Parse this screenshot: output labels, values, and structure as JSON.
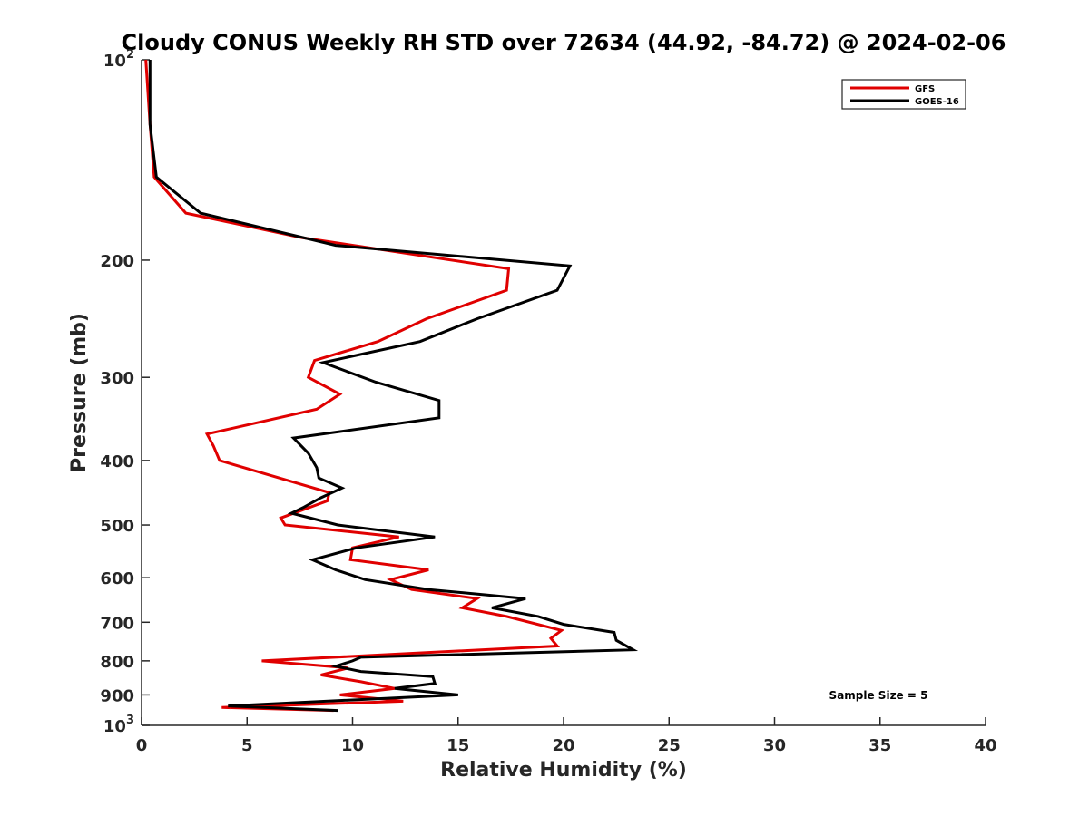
{
  "chart_data": {
    "type": "line",
    "title": "Cloudy CONUS Weekly RH STD over 72634 (44.92, -84.72) @ 2024-02-06",
    "xlabel": "Relative Humidity (%)",
    "ylabel": "Pressure (mb)",
    "xlim": [
      0,
      40
    ],
    "ylim": [
      1000,
      100
    ],
    "y_scale": "log",
    "y_reversed": true,
    "grid": false,
    "legend_position": "top-right",
    "x_ticks": [
      "0",
      "5",
      "10",
      "15",
      "20",
      "25",
      "30",
      "35",
      "40"
    ],
    "y_ticks": [
      {
        "value": 100,
        "base": "10",
        "exp": "2"
      },
      {
        "value": 200,
        "label": "200"
      },
      {
        "value": 300,
        "label": "300"
      },
      {
        "value": 400,
        "label": "400"
      },
      {
        "value": 500,
        "label": "500"
      },
      {
        "value": 600,
        "label": "600"
      },
      {
        "value": 700,
        "label": "700"
      },
      {
        "value": 800,
        "label": "800"
      },
      {
        "value": 900,
        "label": "900"
      },
      {
        "value": 1000,
        "base": "10",
        "exp": "3"
      }
    ],
    "series": [
      {
        "name": "GFS",
        "color": "#e00000",
        "points": [
          [
            0.2,
            100
          ],
          [
            0.4,
            125
          ],
          [
            0.6,
            150
          ],
          [
            2.1,
            170
          ],
          [
            7.6,
            185
          ],
          [
            17.4,
            206
          ],
          [
            17.3,
            222
          ],
          [
            13.5,
            245
          ],
          [
            11.2,
            265
          ],
          [
            8.2,
            283
          ],
          [
            7.9,
            300
          ],
          [
            9.4,
            318
          ],
          [
            8.3,
            335
          ],
          [
            3.1,
            365
          ],
          [
            3.4,
            380
          ],
          [
            3.7,
            400
          ],
          [
            8.9,
            447
          ],
          [
            8.8,
            460
          ],
          [
            6.6,
            488
          ],
          [
            6.8,
            500
          ],
          [
            12.2,
            521
          ],
          [
            10.0,
            541
          ],
          [
            9.9,
            564
          ],
          [
            13.6,
            584
          ],
          [
            11.8,
            604
          ],
          [
            12.8,
            625
          ],
          [
            15.9,
            645
          ],
          [
            15.2,
            666
          ],
          [
            17.3,
            686
          ],
          [
            19.9,
            720
          ],
          [
            19.4,
            740
          ],
          [
            19.7,
            760
          ],
          [
            5.7,
            800
          ],
          [
            9.8,
            820
          ],
          [
            8.5,
            840
          ],
          [
            10.4,
            860
          ],
          [
            12.0,
            880
          ],
          [
            9.4,
            900
          ],
          [
            12.4,
            920
          ],
          [
            3.8,
            940
          ],
          [
            9.1,
            950
          ]
        ]
      },
      {
        "name": "GOES-16",
        "color": "#000000",
        "points": [
          [
            0.4,
            100
          ],
          [
            0.4,
            125
          ],
          [
            0.7,
            150
          ],
          [
            2.8,
            170
          ],
          [
            9.2,
            190
          ],
          [
            20.3,
            204
          ],
          [
            19.7,
            222
          ],
          [
            15.9,
            245
          ],
          [
            13.2,
            265
          ],
          [
            8.6,
            285
          ],
          [
            11.1,
            305
          ],
          [
            14.1,
            325
          ],
          [
            14.1,
            345
          ],
          [
            7.2,
            370
          ],
          [
            7.9,
            390
          ],
          [
            8.3,
            410
          ],
          [
            8.4,
            425
          ],
          [
            9.5,
            440
          ],
          [
            8.5,
            455
          ],
          [
            7.7,
            470
          ],
          [
            7.1,
            480
          ],
          [
            9.3,
            500
          ],
          [
            13.9,
            521
          ],
          [
            10.2,
            541
          ],
          [
            8.1,
            564
          ],
          [
            9.2,
            584
          ],
          [
            10.6,
            604
          ],
          [
            13.6,
            625
          ],
          [
            18.2,
            645
          ],
          [
            16.6,
            666
          ],
          [
            18.8,
            686
          ],
          [
            20.0,
            705
          ],
          [
            22.4,
            725
          ],
          [
            22.5,
            745
          ],
          [
            23.3,
            770
          ],
          [
            10.4,
            790
          ],
          [
            10.0,
            800
          ],
          [
            9.2,
            815
          ],
          [
            10.4,
            830
          ],
          [
            13.8,
            845
          ],
          [
            13.9,
            865
          ],
          [
            12.0,
            880
          ],
          [
            15.0,
            900
          ],
          [
            4.1,
            935
          ],
          [
            9.3,
            950
          ]
        ]
      }
    ],
    "annotation": "Sample Size = 5"
  }
}
